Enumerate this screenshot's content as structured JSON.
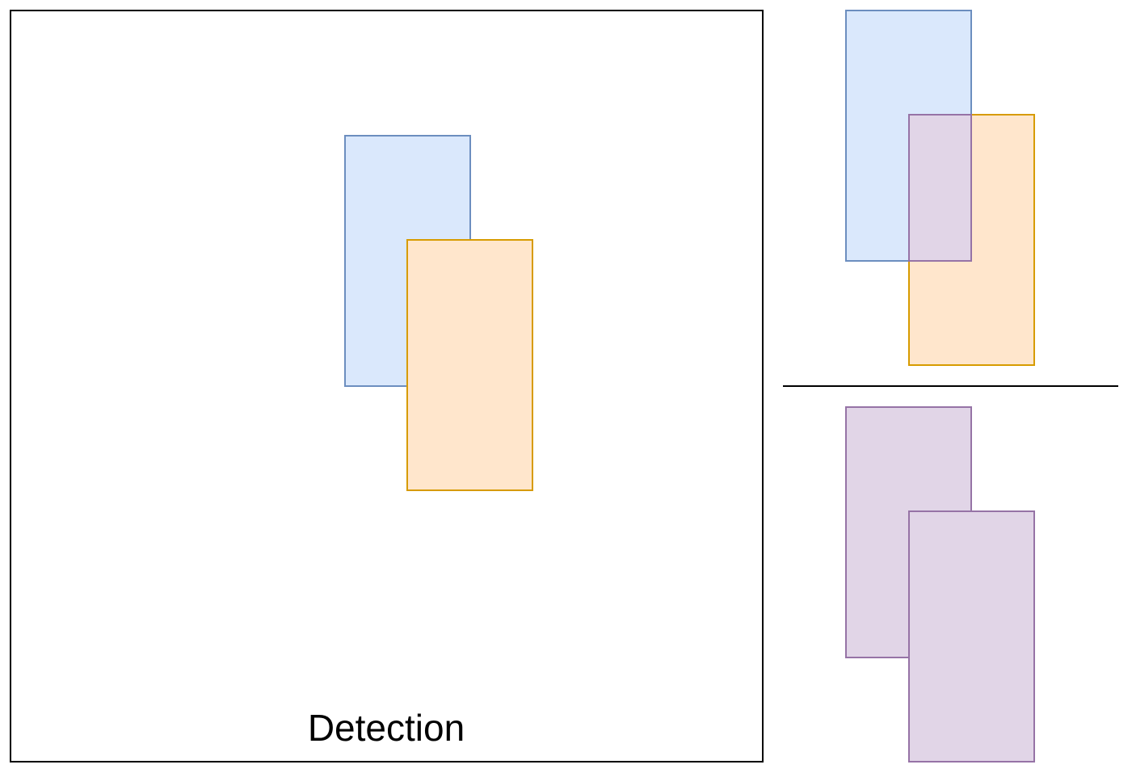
{
  "panel": {
    "label": "Detection"
  }
}
